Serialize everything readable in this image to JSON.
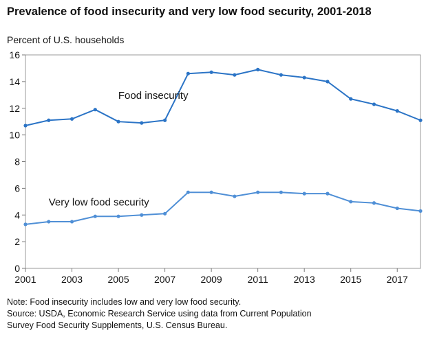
{
  "chart_data": {
    "type": "line",
    "title": "Prevalence of food insecurity and very low food security, 2001-2018",
    "ylabel": "Percent of U.S. households",
    "xlabel": "",
    "x": [
      2001,
      2002,
      2003,
      2004,
      2005,
      2006,
      2007,
      2008,
      2009,
      2010,
      2011,
      2012,
      2013,
      2014,
      2015,
      2016,
      2017,
      2018
    ],
    "series": [
      {
        "name": "Food insecurity",
        "color": "#2b74c6",
        "values": [
          10.7,
          11.1,
          11.2,
          11.9,
          11.0,
          10.9,
          11.1,
          14.6,
          14.7,
          14.5,
          14.9,
          14.5,
          14.3,
          14.0,
          12.7,
          12.3,
          11.8,
          11.1
        ]
      },
      {
        "name": "Very low food security",
        "color": "#4f8fd6",
        "values": [
          3.3,
          3.5,
          3.5,
          3.9,
          3.9,
          4.0,
          4.1,
          5.7,
          5.7,
          5.4,
          5.7,
          5.7,
          5.6,
          5.6,
          5.0,
          4.9,
          4.5,
          4.3
        ]
      }
    ],
    "ylim": [
      0,
      16
    ],
    "yticks": [
      0,
      2,
      4,
      6,
      8,
      10,
      12,
      14,
      16
    ],
    "xlim": [
      2001,
      2018
    ],
    "xtick_labels": [
      "2001",
      "2003",
      "2005",
      "2007",
      "2009",
      "2011",
      "2013",
      "2015",
      "2017"
    ],
    "grid": false,
    "legend": "inline"
  },
  "notes": {
    "note": "Note: Food insecurity includes low and very low food security.",
    "source_line1": "Source: USDA, Economic Research Service using data from Current Population",
    "source_line2": "Survey Food Security Supplements, U.S. Census Bureau."
  }
}
